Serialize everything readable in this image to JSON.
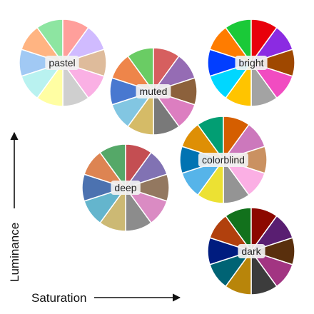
{
  "axes": {
    "x_label": "Saturation",
    "y_label": "Luminance"
  },
  "wheels": [
    {
      "name": "pastel",
      "colors": [
        "#a1c9f4",
        "#ffb482",
        "#8de5a1",
        "#ff9f9b",
        "#d0bbff",
        "#debb9b",
        "#fab0e4",
        "#cfcfcf",
        "#fffea3",
        "#b9f2f0"
      ]
    },
    {
      "name": "muted",
      "colors": [
        "#4878d0",
        "#ee854a",
        "#6acc64",
        "#d65f5f",
        "#956cb4",
        "#8c613c",
        "#dc7ec0",
        "#797979",
        "#d5bb67",
        "#82c6e2"
      ]
    },
    {
      "name": "bright",
      "colors": [
        "#023eff",
        "#ff7c00",
        "#1ac938",
        "#e8000b",
        "#8b2be2",
        "#9f4800",
        "#f14cc1",
        "#a3a3a3",
        "#ffc400",
        "#00d7ff"
      ]
    },
    {
      "name": "colorblind",
      "colors": [
        "#0173b2",
        "#de8f05",
        "#029e73",
        "#d55e00",
        "#cc78bc",
        "#ca9161",
        "#fbafe4",
        "#949494",
        "#ece133",
        "#56b4e9"
      ]
    },
    {
      "name": "deep",
      "colors": [
        "#4c72b0",
        "#dd8452",
        "#55a868",
        "#c44e52",
        "#8172b3",
        "#937860",
        "#da8bc3",
        "#8c8c8c",
        "#ccb974",
        "#64b5cd"
      ]
    },
    {
      "name": "dark",
      "colors": [
        "#001c7f",
        "#b1400d",
        "#12711c",
        "#8c0800",
        "#591e71",
        "#592f0d",
        "#a23582",
        "#3c3c3c",
        "#b8850a",
        "#006374"
      ]
    }
  ]
}
